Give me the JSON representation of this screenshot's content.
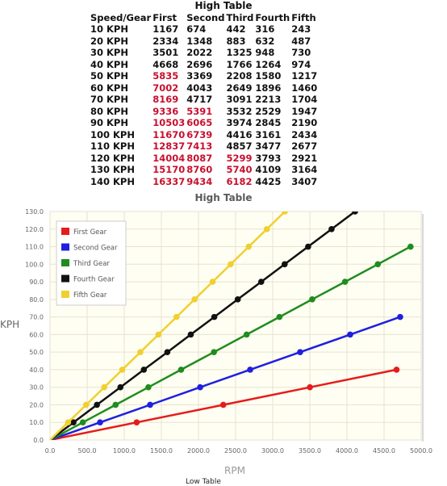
{
  "table": {
    "title": "High Table",
    "headers": [
      "Speed/Gear",
      "First",
      "Second",
      "Third",
      "Fourth",
      "Fifth"
    ],
    "rows": [
      [
        "10 KPH",
        "1167",
        "674",
        "442",
        "316",
        "243"
      ],
      [
        "20 KPH",
        "2334",
        "1348",
        "883",
        "632",
        "487"
      ],
      [
        "30 KPH",
        "3501",
        "2022",
        "1325",
        "948",
        "730"
      ],
      [
        "40 KPH",
        "4668",
        "2696",
        "1766",
        "1264",
        "974"
      ],
      [
        "50 KPH",
        "5835",
        "3369",
        "2208",
        "1580",
        "1217"
      ],
      [
        "60 KPH",
        "7002",
        "4043",
        "2649",
        "1896",
        "1460"
      ],
      [
        "70 KPH",
        "8169",
        "4717",
        "3091",
        "2213",
        "1704"
      ],
      [
        "80 KPH",
        "9336",
        "5391",
        "3532",
        "2529",
        "1947"
      ],
      [
        "90 KPH",
        "10503",
        "6065",
        "3974",
        "2845",
        "2190"
      ],
      [
        "100 KPH",
        "11670",
        "6739",
        "4416",
        "3161",
        "2434"
      ],
      [
        "110 KPH",
        "12837",
        "7413",
        "4857",
        "3477",
        "2677"
      ],
      [
        "120 KPH",
        "14004",
        "8087",
        "5299",
        "3793",
        "2921"
      ],
      [
        "130 KPH",
        "15170",
        "8760",
        "5740",
        "4109",
        "3164"
      ],
      [
        "140 KPH",
        "16337",
        "9434",
        "6182",
        "4425",
        "3407"
      ]
    ],
    "red_cells": [
      [
        4,
        1
      ],
      [
        5,
        1
      ],
      [
        6,
        1
      ],
      [
        7,
        1
      ],
      [
        8,
        1
      ],
      [
        9,
        1
      ],
      [
        10,
        1
      ],
      [
        11,
        1
      ],
      [
        12,
        1
      ],
      [
        13,
        1
      ],
      [
        7,
        2
      ],
      [
        8,
        2
      ],
      [
        9,
        2
      ],
      [
        10,
        2
      ],
      [
        11,
        2
      ],
      [
        12,
        2
      ],
      [
        13,
        2
      ],
      [
        11,
        3
      ],
      [
        12,
        3
      ],
      [
        13,
        3
      ]
    ]
  },
  "chart_data": {
    "type": "line",
    "title": "High Table",
    "xlabel": "RPM",
    "ylabel": "KPH",
    "xlim": [
      0,
      5000
    ],
    "ylim": [
      0,
      130
    ],
    "x_ticks": [
      "0.0",
      "500.0",
      "1000.0",
      "1500.0",
      "2000.0",
      "2500.0",
      "3000.0",
      "3500.0",
      "4000.0",
      "4500.0",
      "5000.0"
    ],
    "y_ticks": [
      "0.0",
      "10.0",
      "20.0",
      "30.0",
      "40.0",
      "50.0",
      "60.0",
      "70.0",
      "80.0",
      "90.0",
      "100.0",
      "110.0",
      "120.0",
      "130.0"
    ],
    "grid": true,
    "legend_position": "top-left",
    "series": [
      {
        "name": "First Gear",
        "color": "#e51c1c",
        "points": [
          [
            0,
            0
          ],
          [
            1167,
            10
          ],
          [
            2334,
            20
          ],
          [
            3501,
            30
          ],
          [
            4668,
            40
          ]
        ]
      },
      {
        "name": "Second Gear",
        "color": "#1f1fe0",
        "points": [
          [
            0,
            0
          ],
          [
            674,
            10
          ],
          [
            1348,
            20
          ],
          [
            2022,
            30
          ],
          [
            2696,
            40
          ],
          [
            3369,
            50
          ],
          [
            4043,
            60
          ],
          [
            4717,
            70
          ]
        ]
      },
      {
        "name": "Third Gear",
        "color": "#1f8c1f",
        "points": [
          [
            0,
            0
          ],
          [
            442,
            10
          ],
          [
            883,
            20
          ],
          [
            1325,
            30
          ],
          [
            1766,
            40
          ],
          [
            2208,
            50
          ],
          [
            2649,
            60
          ],
          [
            3091,
            70
          ],
          [
            3532,
            80
          ],
          [
            3974,
            90
          ],
          [
            4416,
            100
          ],
          [
            4857,
            110
          ]
        ]
      },
      {
        "name": "Fourth Gear",
        "color": "#111111",
        "points": [
          [
            0,
            0
          ],
          [
            316,
            10
          ],
          [
            632,
            20
          ],
          [
            948,
            30
          ],
          [
            1264,
            40
          ],
          [
            1580,
            50
          ],
          [
            1896,
            60
          ],
          [
            2213,
            70
          ],
          [
            2529,
            80
          ],
          [
            2845,
            90
          ],
          [
            3161,
            100
          ],
          [
            3477,
            110
          ],
          [
            3793,
            120
          ],
          [
            4109,
            130
          ]
        ]
      },
      {
        "name": "Fifth Gear",
        "color": "#f0d030",
        "points": [
          [
            0,
            0
          ],
          [
            243,
            10
          ],
          [
            487,
            20
          ],
          [
            730,
            30
          ],
          [
            974,
            40
          ],
          [
            1217,
            50
          ],
          [
            1460,
            60
          ],
          [
            1704,
            70
          ],
          [
            1947,
            80
          ],
          [
            2190,
            90
          ],
          [
            2434,
            100
          ],
          [
            2677,
            110
          ],
          [
            2921,
            120
          ],
          [
            3164,
            130
          ]
        ]
      }
    ]
  },
  "footnote": "Low Table"
}
